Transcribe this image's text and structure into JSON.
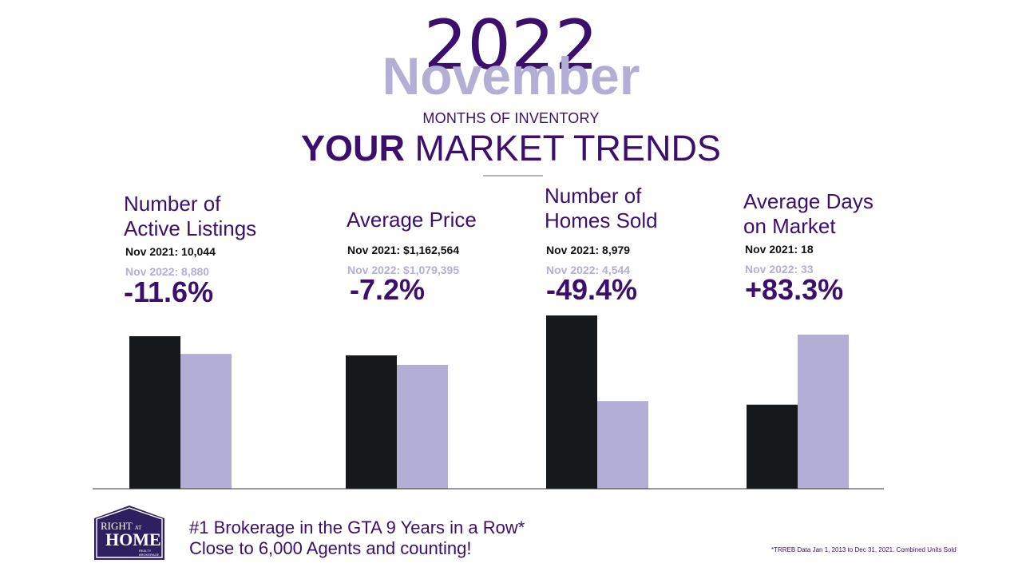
{
  "header": {
    "year": "2022",
    "month": "November",
    "subtitle": "MONTHS OF INVENTORY",
    "title_bold": "YOUR",
    "title_rest": " MARKET TRENDS"
  },
  "metrics": [
    {
      "title_line1": "Number of",
      "title_line2": "Active Listings",
      "line_2021": "Nov 2021: 10,044",
      "line_2022": "Nov  2022: 8,880",
      "change": "-11.6%"
    },
    {
      "title_line1": "Average Price",
      "title_line2": "",
      "line_2021": "Nov 2021: $1,162,564",
      "line_2022": "Nov  2022: $1,079,395",
      "change": "-7.2%"
    },
    {
      "title_line1": "Number of",
      "title_line2": "Homes Sold",
      "line_2021": "Nov 2021: 8,979",
      "line_2022": "Nov  2022: 4,544",
      "change": "-49.4%"
    },
    {
      "title_line1": "Average Days",
      "title_line2": "on Market",
      "line_2021": "Nov 2021: 18",
      "line_2022": "Nov  2022: 33",
      "change": "+83.3%"
    }
  ],
  "chart_data": {
    "type": "bar",
    "categories": [
      "Number of Active Listings",
      "Average Price",
      "Number of Homes Sold",
      "Average Days on Market"
    ],
    "series": [
      {
        "values": [
          10044,
          1162564,
          8979,
          18
        ]
      },
      {
        "values": [
          8880,
          1079395,
          4544,
          33
        ]
      }
    ],
    "colors": [
      "#16191c",
      "#b3aed6"
    ]
  },
  "footer": {
    "logo_line1": "RIGHT",
    "logo_at": "AT",
    "logo_line2": "HOME",
    "logo_small": "REALTY BROKERAGE",
    "tagline1": "#1 Brokerage in the GTA 9 Years in a Row*",
    "tagline2": "Close to 6,000 Agents and counting!",
    "footnote": "*TRREB Data Jan 1, 2013 to Dec 31, 2021. Combined  Units Sold"
  }
}
